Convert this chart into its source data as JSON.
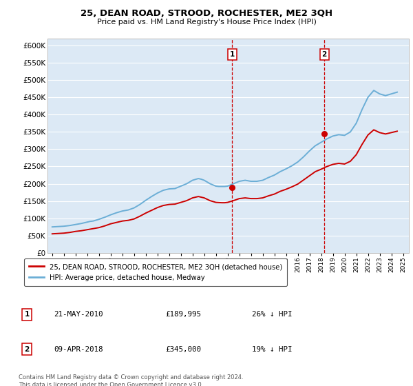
{
  "title": "25, DEAN ROAD, STROOD, ROCHESTER, ME2 3QH",
  "subtitle": "Price paid vs. HM Land Registry's House Price Index (HPI)",
  "background_color": "#dce9f5",
  "plot_bg_color": "#dce9f5",
  "ylabel_ticks": [
    "£0",
    "£50K",
    "£100K",
    "£150K",
    "£200K",
    "£250K",
    "£300K",
    "£350K",
    "£400K",
    "£450K",
    "£500K",
    "£550K",
    "£600K"
  ],
  "ytick_values": [
    0,
    50000,
    100000,
    150000,
    200000,
    250000,
    300000,
    350000,
    400000,
    450000,
    500000,
    550000,
    600000
  ],
  "xlim_start": 1994.6,
  "xlim_end": 2025.5,
  "ylim_min": 0,
  "ylim_max": 620000,
  "hpi_color": "#6baed6",
  "price_color": "#cc0000",
  "vline_color": "#cc0000",
  "marker1_year": 2010.38,
  "marker1_price": 189995,
  "marker1_label": "1",
  "marker2_year": 2018.27,
  "marker2_price": 345000,
  "marker2_label": "2",
  "legend_label_price": "25, DEAN ROAD, STROOD, ROCHESTER, ME2 3QH (detached house)",
  "legend_label_hpi": "HPI: Average price, detached house, Medway",
  "table_row1": [
    "1",
    "21-MAY-2010",
    "£189,995",
    "26% ↓ HPI"
  ],
  "table_row2": [
    "2",
    "09-APR-2018",
    "£345,000",
    "19% ↓ HPI"
  ],
  "footnote": "Contains HM Land Registry data © Crown copyright and database right 2024.\nThis data is licensed under the Open Government Licence v3.0.",
  "hpi_years": [
    1995,
    1995.25,
    1995.5,
    1995.75,
    1996,
    1996.25,
    1996.5,
    1996.75,
    1997,
    1997.25,
    1997.5,
    1997.75,
    1998,
    1998.25,
    1998.5,
    1998.75,
    1999,
    1999.25,
    1999.5,
    1999.75,
    2000,
    2000.25,
    2000.5,
    2000.75,
    2001,
    2001.25,
    2001.5,
    2001.75,
    2002,
    2002.25,
    2002.5,
    2002.75,
    2003,
    2003.25,
    2003.5,
    2003.75,
    2004,
    2004.25,
    2004.5,
    2004.75,
    2005,
    2005.25,
    2005.5,
    2005.75,
    2006,
    2006.25,
    2006.5,
    2006.75,
    2007,
    2007.25,
    2007.5,
    2007.75,
    2008,
    2008.25,
    2008.5,
    2008.75,
    2009,
    2009.25,
    2009.5,
    2009.75,
    2010,
    2010.25,
    2010.5,
    2010.75,
    2011,
    2011.25,
    2011.5,
    2011.75,
    2012,
    2012.25,
    2012.5,
    2012.75,
    2013,
    2013.25,
    2013.5,
    2013.75,
    2014,
    2014.25,
    2014.5,
    2014.75,
    2015,
    2015.25,
    2015.5,
    2015.75,
    2016,
    2016.25,
    2016.5,
    2016.75,
    2017,
    2017.25,
    2017.5,
    2017.75,
    2018,
    2018.25,
    2018.5,
    2018.75,
    2019,
    2019.25,
    2019.5,
    2019.75,
    2020,
    2020.25,
    2020.5,
    2020.75,
    2021,
    2021.25,
    2021.5,
    2021.75,
    2022,
    2022.25,
    2022.5,
    2022.75,
    2023,
    2023.25,
    2023.5,
    2023.75,
    2024,
    2024.25,
    2024.5
  ],
  "hpi_values": [
    75000,
    75500,
    76000,
    76500,
    77000,
    78000,
    79000,
    80500,
    82000,
    83500,
    85000,
    87000,
    89000,
    91000,
    92000,
    94500,
    97000,
    100000,
    103000,
    106500,
    110000,
    113000,
    116000,
    118500,
    121000,
    122500,
    124000,
    127000,
    130000,
    135000,
    140000,
    146000,
    152000,
    157500,
    163000,
    168000,
    173000,
    177000,
    181000,
    183000,
    185000,
    185500,
    186000,
    189500,
    193000,
    196500,
    200000,
    205000,
    210000,
    212500,
    215000,
    213000,
    210000,
    205000,
    200000,
    196500,
    193000,
    192000,
    192000,
    192000,
    193000,
    196500,
    200000,
    203500,
    207000,
    208500,
    210000,
    208500,
    207000,
    207000,
    207000,
    208500,
    210000,
    214000,
    218000,
    221500,
    225000,
    230000,
    235000,
    239000,
    243000,
    247500,
    252000,
    257500,
    263000,
    270500,
    278000,
    286500,
    295000,
    302500,
    310000,
    315000,
    320000,
    325000,
    330000,
    334000,
    338000,
    340000,
    342000,
    341000,
    340000,
    345000,
    350000,
    362500,
    375000,
    395000,
    415000,
    432500,
    450000,
    460000,
    470000,
    465000,
    460000,
    457500,
    455000,
    457500,
    460000,
    462500,
    465000
  ],
  "price_years": [
    1995,
    1995.25,
    1995.5,
    1995.75,
    1996,
    1996.25,
    1996.5,
    1996.75,
    1997,
    1997.25,
    1997.5,
    1997.75,
    1998,
    1998.25,
    1998.5,
    1998.75,
    1999,
    1999.25,
    1999.5,
    1999.75,
    2000,
    2000.25,
    2000.5,
    2000.75,
    2001,
    2001.25,
    2001.5,
    2001.75,
    2002,
    2002.25,
    2002.5,
    2002.75,
    2003,
    2003.25,
    2003.5,
    2003.75,
    2004,
    2004.25,
    2004.5,
    2004.75,
    2005,
    2005.25,
    2005.5,
    2005.75,
    2006,
    2006.25,
    2006.5,
    2006.75,
    2007,
    2007.25,
    2007.5,
    2007.75,
    2008,
    2008.25,
    2008.5,
    2008.75,
    2009,
    2009.25,
    2009.5,
    2009.75,
    2010,
    2010.25,
    2010.5,
    2010.75,
    2011,
    2011.25,
    2011.5,
    2011.75,
    2012,
    2012.25,
    2012.5,
    2012.75,
    2013,
    2013.25,
    2013.5,
    2013.75,
    2014,
    2014.25,
    2014.5,
    2014.75,
    2015,
    2015.25,
    2015.5,
    2015.75,
    2016,
    2016.25,
    2016.5,
    2016.75,
    2017,
    2017.25,
    2017.5,
    2017.75,
    2018,
    2018.25,
    2018.5,
    2018.75,
    2019,
    2019.25,
    2019.5,
    2019.75,
    2020,
    2020.25,
    2020.5,
    2020.75,
    2021,
    2021.25,
    2021.5,
    2021.75,
    2022,
    2022.25,
    2022.5,
    2022.75,
    2023,
    2023.25,
    2023.5,
    2023.75,
    2024,
    2024.25,
    2024.5
  ],
  "price_values": [
    55000,
    55500,
    56000,
    56500,
    57000,
    58000,
    59000,
    60500,
    62000,
    63000,
    64000,
    65500,
    67000,
    68500,
    70000,
    71500,
    73000,
    75500,
    78000,
    81000,
    84000,
    86000,
    88000,
    90000,
    92000,
    93000,
    94000,
    96000,
    98000,
    102000,
    106000,
    110500,
    115000,
    119000,
    123000,
    127000,
    131000,
    134000,
    137000,
    138500,
    140000,
    140500,
    141000,
    143500,
    146000,
    148500,
    151000,
    155000,
    159000,
    161000,
    163000,
    161000,
    159000,
    155000,
    151000,
    148500,
    146000,
    145500,
    145000,
    145000,
    146000,
    148500,
    151000,
    154000,
    157000,
    158000,
    159000,
    158000,
    157000,
    157000,
    157000,
    158000,
    159000,
    162000,
    165000,
    167500,
    170000,
    174000,
    178000,
    181000,
    184000,
    187500,
    191000,
    195000,
    199000,
    205000,
    211000,
    217000,
    223000,
    229000,
    235000,
    238500,
    242000,
    246000,
    250000,
    253000,
    256000,
    257500,
    259000,
    258000,
    257000,
    261000,
    265000,
    274500,
    284000,
    299000,
    314000,
    327500,
    341000,
    348500,
    356000,
    352000,
    348000,
    346000,
    344000,
    346000,
    348000,
    350000,
    352000
  ]
}
